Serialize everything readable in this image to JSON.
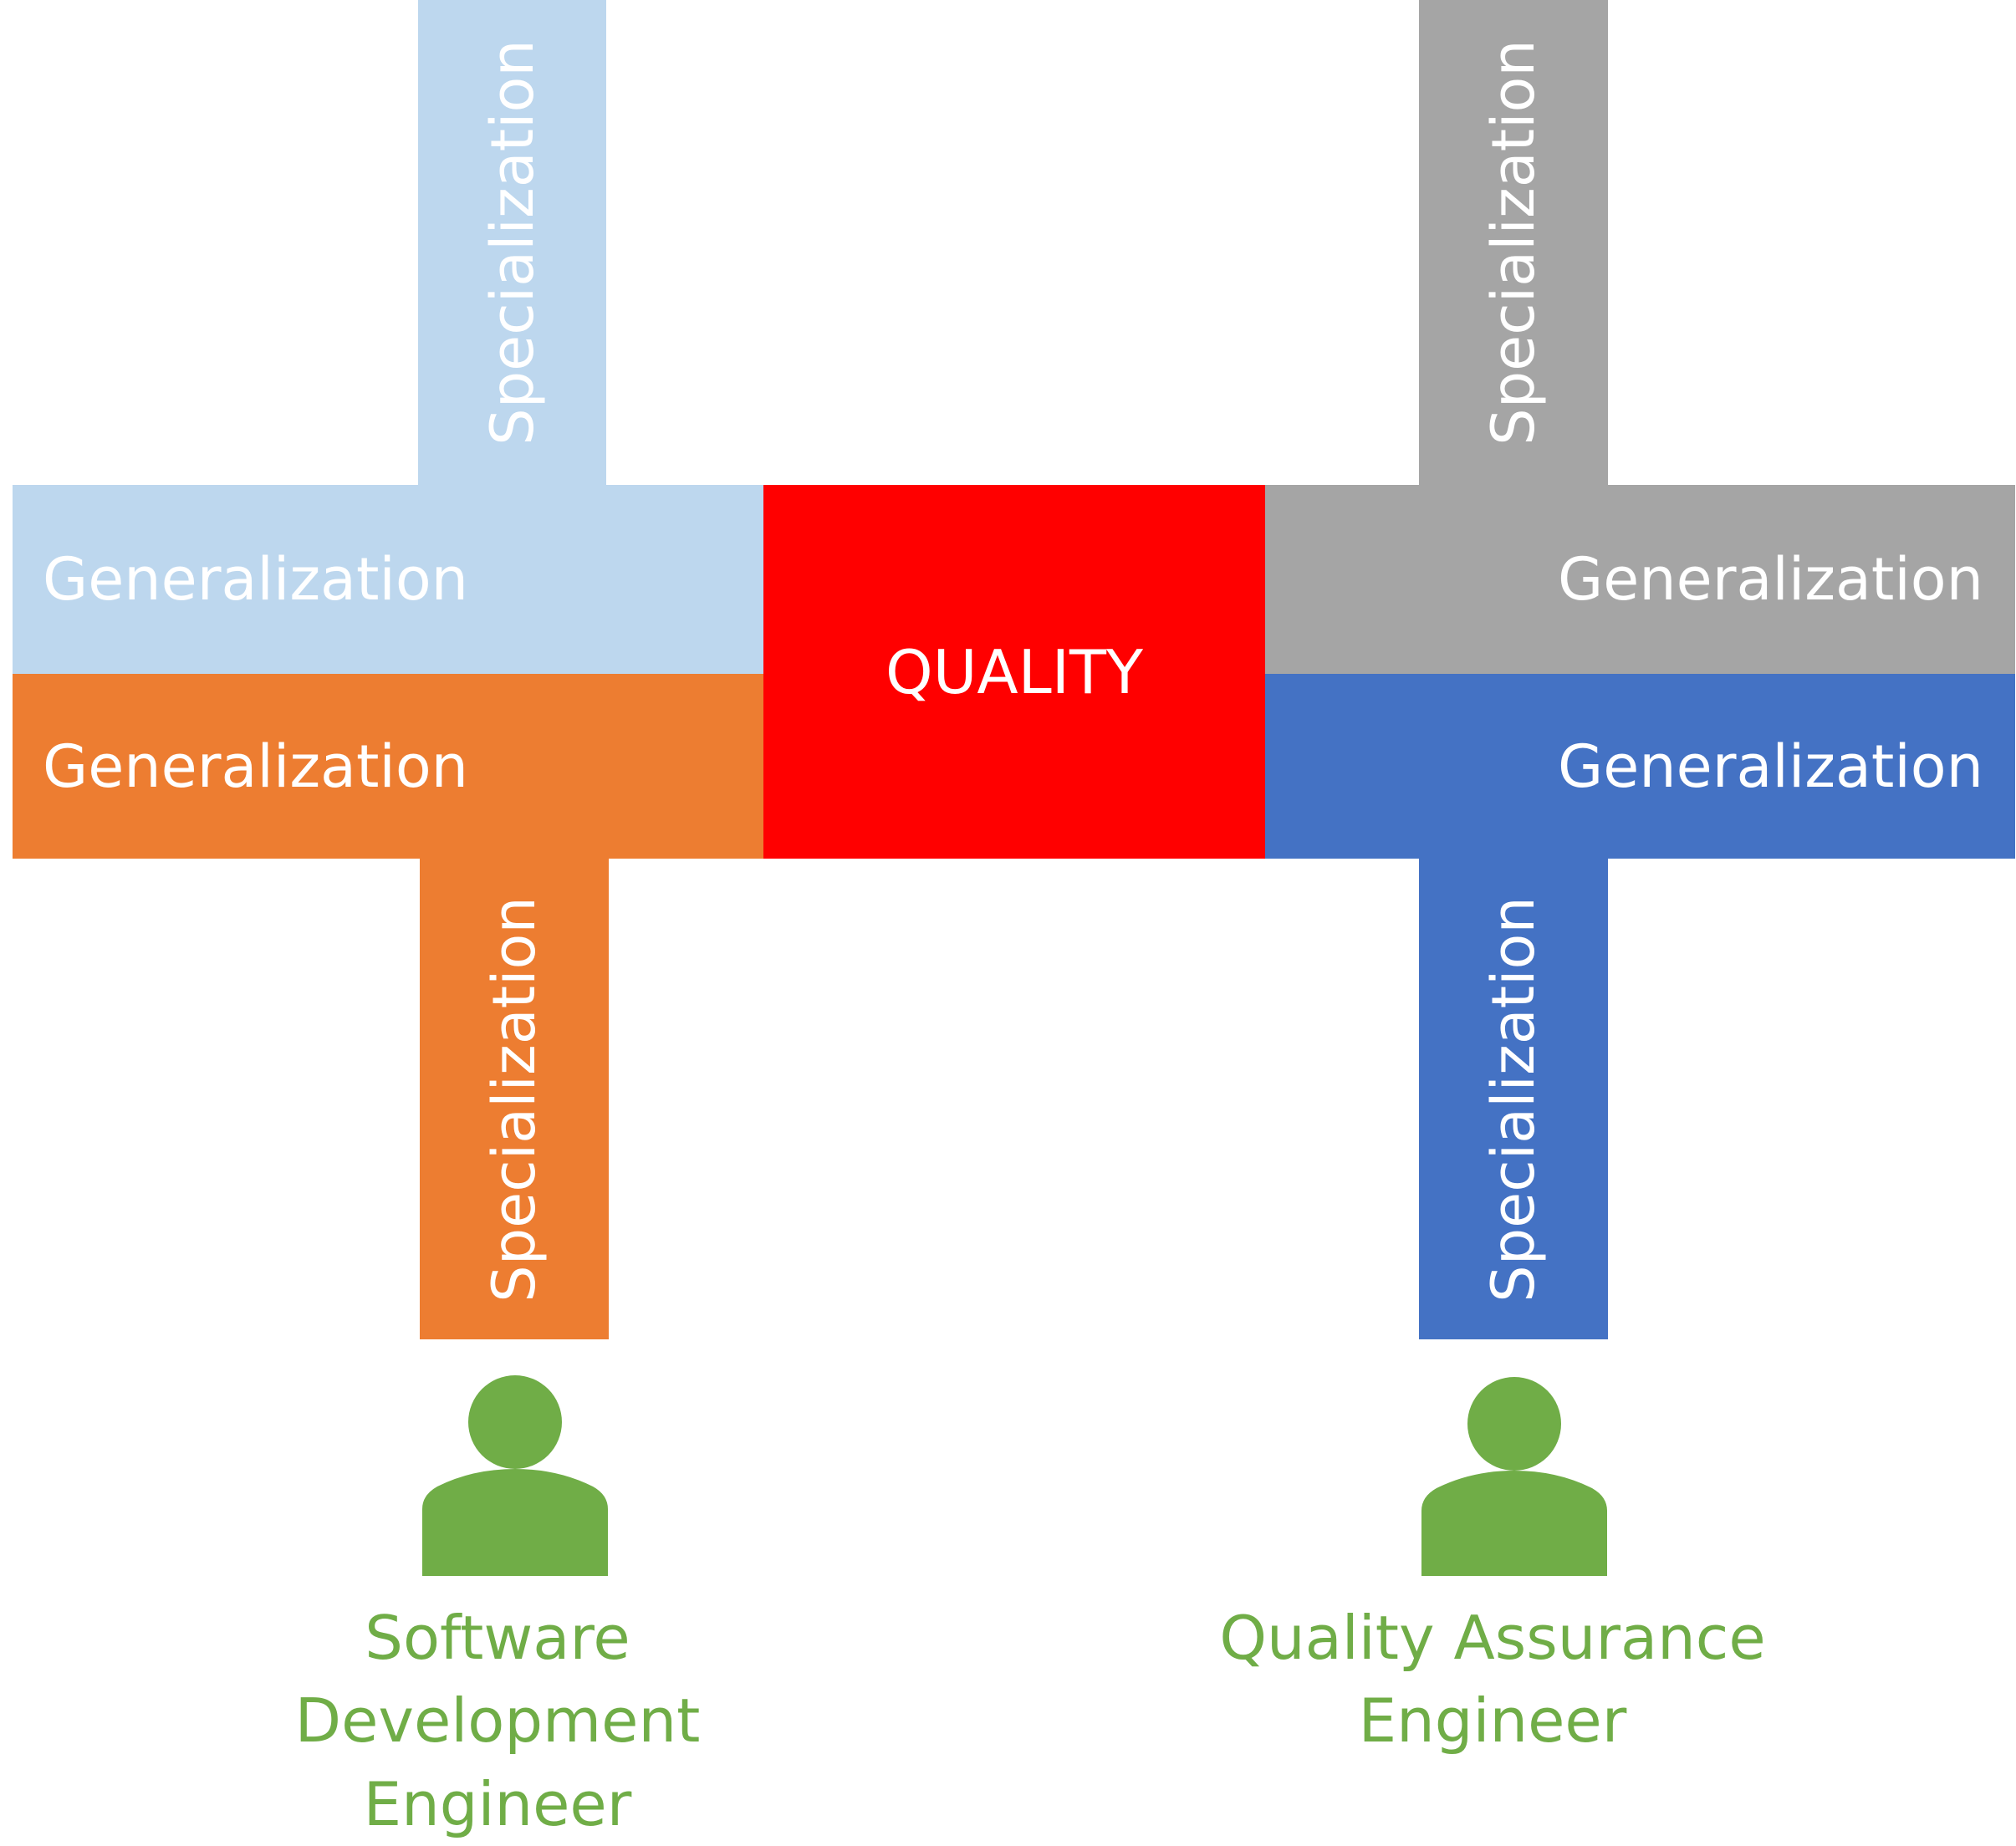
{
  "colors": {
    "light_blue": "#BDD7EE",
    "orange": "#ED7D31",
    "red": "#FF0000",
    "gray": "#A5A5A5",
    "blue": "#4472C4",
    "green": "#70AD47",
    "text_white": "#FFFFFF"
  },
  "center": {
    "label": "QUALITY"
  },
  "left": {
    "top_specialization": "Specialization",
    "top_generalization": "Generalization",
    "bottom_generalization": "Generalization",
    "bottom_specialization": "Specialization",
    "person_icon": "person-icon",
    "person_label_line1": "Software Development",
    "person_label_line2": "Engineer"
  },
  "right": {
    "top_specialization": "Specialization",
    "top_generalization": "Generalization",
    "bottom_generalization": "Generalization",
    "bottom_specialization": "Specialization",
    "person_icon": "person-icon",
    "person_label_line1": "Quality Assurance",
    "person_label_line2": "Engineer"
  }
}
